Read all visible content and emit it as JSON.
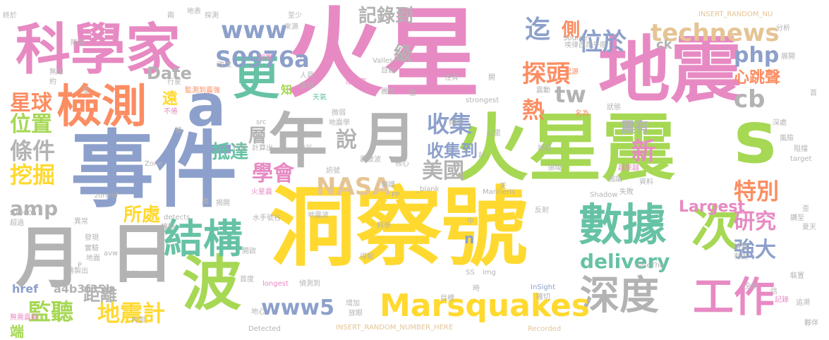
{
  "palette": {
    "pink": "#e78ac3",
    "green": "#a6d854",
    "orange": "#fc8d62",
    "teal": "#66c2a5",
    "blue": "#8da0cb",
    "yellow": "#ffd92f",
    "tan": "#e5c494",
    "gray": "#b3b3b3"
  },
  "words": [
    {
      "text": "火星",
      "color": "#e78ac3"
    },
    {
      "text": "地震",
      "color": "#e78ac3"
    },
    {
      "text": "事件",
      "color": "#8da0cb"
    },
    {
      "text": "洞察號",
      "color": "#ffd92f"
    },
    {
      "text": "火星震",
      "color": "#a6d854"
    },
    {
      "text": "科學家",
      "color": "#e78ac3"
    },
    {
      "text": "檢測",
      "color": "#fc8d62"
    },
    {
      "text": "年",
      "color": "#b3b3b3"
    },
    {
      "text": "月",
      "color": "#b3b3b3"
    },
    {
      "text": "月",
      "color": "#b3b3b3"
    },
    {
      "text": "日",
      "color": "#b3b3b3"
    },
    {
      "text": "a",
      "color": "#8da0cb"
    },
    {
      "text": "s",
      "color": "#a6d854"
    },
    {
      "text": "更",
      "color": "#66c2a5"
    },
    {
      "text": "數據",
      "color": "#66c2a5"
    },
    {
      "text": "次",
      "color": "#a6d854"
    },
    {
      "text": "波",
      "color": "#a6d854"
    },
    {
      "text": "結構",
      "color": "#66c2a5"
    },
    {
      "text": "深度",
      "color": "#b3b3b3"
    },
    {
      "text": "工作",
      "color": "#e78ac3"
    },
    {
      "text": "Marsquakes",
      "color": "#ffd92f"
    },
    {
      "text": "NASA",
      "color": "#e5c494"
    },
    {
      "text": "www",
      "color": "#8da0cb"
    },
    {
      "text": "www5",
      "color": "#8da0cb"
    },
    {
      "text": "technews",
      "color": "#e5c494"
    },
    {
      "text": "S0976a",
      "color": "#8da0cb"
    },
    {
      "text": "delivery",
      "color": "#66c2a5"
    },
    {
      "text": "amp",
      "color": "#b3b3b3"
    },
    {
      "text": "Date",
      "color": "#b3b3b3"
    },
    {
      "text": "tw",
      "color": "#b3b3b3"
    },
    {
      "text": "cb",
      "color": "#b3b3b3"
    },
    {
      "text": "php",
      "color": "#8da0cb"
    },
    {
      "text": "Largest",
      "color": "#e78ac3"
    },
    {
      "text": "記錄到",
      "color": "#b3b3b3"
    },
    {
      "text": "迄",
      "color": "#8da0cb"
    },
    {
      "text": "側",
      "color": "#fc8d62"
    },
    {
      "text": "位於",
      "color": "#8da0cb"
    },
    {
      "text": "級",
      "color": "#b3b3b3"
    },
    {
      "text": "探頭",
      "color": "#fc8d62"
    },
    {
      "text": "熱",
      "color": "#fc8d62"
    },
    {
      "text": "收集",
      "color": "#8da0cb"
    },
    {
      "text": "收集到",
      "color": "#8da0cb"
    },
    {
      "text": "美國",
      "color": "#b3b3b3"
    },
    {
      "text": "說",
      "color": "#b3b3b3"
    },
    {
      "text": "層",
      "color": "#b3b3b3"
    },
    {
      "text": "學會",
      "color": "#e78ac3"
    },
    {
      "text": "新",
      "color": "#e78ac3"
    },
    {
      "text": "特別",
      "color": "#fc8d62"
    },
    {
      "text": "研究",
      "color": "#e78ac3"
    },
    {
      "text": "強大",
      "color": "#8da0cb"
    },
    {
      "text": "心跳聲",
      "color": "#fc8d62"
    },
    {
      "text": "星球",
      "color": "#fc8d62"
    },
    {
      "text": "位置",
      "color": "#a6d854"
    },
    {
      "text": "條件",
      "color": "#b3b3b3"
    },
    {
      "text": "挖掘",
      "color": "#ffd92f"
    },
    {
      "text": "所處",
      "color": "#ffd92f"
    },
    {
      "text": "監聽",
      "color": "#a6d854"
    },
    {
      "text": "地震計",
      "color": "#ffd92f"
    },
    {
      "text": "距離",
      "color": "#b3b3b3"
    },
    {
      "text": "抵達",
      "color": "#66c2a5"
    },
    {
      "text": "遠",
      "color": "#ffd92f"
    },
    {
      "text": "href",
      "color": "#8da0cb"
    },
    {
      "text": "a4b3f35b",
      "color": "#b3b3b3"
    },
    {
      "text": "震有",
      "color": "#b3b3b3"
    },
    {
      "text": "ck",
      "color": "#b3b3b3"
    },
    {
      "text": "端",
      "color": "#a6d854"
    },
    {
      "text": "知",
      "color": "#a6d854"
    },
    {
      "text": "n",
      "color": "#8da0cb"
    },
    {
      "text": "監測到震強",
      "color": "#fc8d62"
    },
    {
      "text": "無線",
      "color": "#b3b3b3"
    },
    {
      "text": "約",
      "color": "#b3b3b3"
    },
    {
      "text": "電",
      "color": "#b3b3b3"
    },
    {
      "text": "行星",
      "color": "#b3b3b3"
    },
    {
      "text": "不倦",
      "color": "#e78ac3"
    },
    {
      "text": "極",
      "color": "#b3b3b3"
    },
    {
      "text": "Zone",
      "color": "#b3b3b3"
    },
    {
      "text": "zoneid",
      "color": "#b3b3b3"
    },
    {
      "text": "S1000a",
      "color": "#b3b3b3"
    },
    {
      "text": "超過",
      "color": "#b3b3b3"
    },
    {
      "text": "異常",
      "color": "#b3b3b3"
    },
    {
      "text": "發現",
      "color": "#b3b3b3"
    },
    {
      "text": "實驗",
      "color": "#b3b3b3"
    },
    {
      "text": "地面",
      "color": "#b3b3b3"
    },
    {
      "text": "繪製出",
      "color": "#b3b3b3"
    },
    {
      "text": "無需震疑",
      "color": "#e78ac3"
    },
    {
      "text": "P",
      "color": "#b3b3b3"
    },
    {
      "text": "avw",
      "color": "#b3b3b3"
    },
    {
      "text": "聽到",
      "color": "#b3b3b3"
    },
    {
      "text": "內部",
      "color": "#b3b3b3"
    },
    {
      "text": "終於",
      "color": "#b3b3b3"
    },
    {
      "text": "降落",
      "color": "#b3b3b3"
    },
    {
      "text": "地表",
      "color": "#b3b3b3"
    },
    {
      "text": "探測",
      "color": "#b3b3b3"
    },
    {
      "text": "兩",
      "color": "#b3b3b3"
    },
    {
      "text": "至少",
      "color": "#b3b3b3"
    },
    {
      "text": "來源",
      "color": "#b3b3b3"
    },
    {
      "text": "部署",
      "color": "#e78ac3"
    },
    {
      "text": "改改",
      "color": "#b3b3b3"
    },
    {
      "text": "Valles",
      "color": "#b3b3b3"
    },
    {
      "text": "INSERT_RANDOM_NU",
      "color": "#e5c494"
    },
    {
      "text": "Source",
      "color": "#b3b3b3"
    },
    {
      "text": "埃律西昂平原",
      "color": "#b3b3b3"
    },
    {
      "text": "分析",
      "color": "#b3b3b3"
    },
    {
      "text": "展開",
      "color": "#b3b3b3"
    },
    {
      "text": "目錄",
      "color": "#b3b3b3"
    },
    {
      "text": "人員",
      "color": "#b3b3b3"
    },
    {
      "text": "畫出",
      "color": "#b3b3b3"
    },
    {
      "text": "陰影區",
      "color": "#e78ac3"
    },
    {
      "text": "團隊",
      "color": "#b3b3b3"
    },
    {
      "text": "天氣",
      "color": "#66c2a5"
    },
    {
      "text": "性質",
      "color": "#b3b3b3"
    },
    {
      "text": "開",
      "color": "#b3b3b3"
    },
    {
      "text": "起源",
      "color": "#fc8d62"
    },
    {
      "text": "震動",
      "color": "#b3b3b3"
    },
    {
      "text": "整",
      "color": "#b3b3b3"
    },
    {
      "text": "strongest",
      "color": "#b3b3b3"
    },
    {
      "text": "名為",
      "color": "#fc8d62"
    },
    {
      "text": "狀態",
      "color": "#b3b3b3"
    },
    {
      "text": "首",
      "color": "#b3b3b3"
    },
    {
      "text": "微弱",
      "color": "#b3b3b3"
    },
    {
      "text": "組件",
      "color": "#b3b3b3"
    },
    {
      "text": "src",
      "color": "#b3b3b3"
    },
    {
      "text": "地震學",
      "color": "#b3b3b3"
    },
    {
      "text": "打消",
      "color": "#b3b3b3"
    },
    {
      "text": "計算出",
      "color": "#b3b3b3"
    },
    {
      "text": "峽谷",
      "color": "#b3b3b3"
    },
    {
      "text": "震波波",
      "color": "#b3b3b3"
    },
    {
      "text": "核心",
      "color": "#b3b3b3"
    },
    {
      "text": "公里",
      "color": "#b3b3b3"
    },
    {
      "text": "深處",
      "color": "#b3b3b3"
    },
    {
      "text": "計",
      "color": "#b3b3b3"
    },
    {
      "text": "地殼",
      "color": "#b3b3b3"
    },
    {
      "text": "風險",
      "color": "#b3b3b3"
    },
    {
      "text": "阻擋",
      "color": "#b3b3b3"
    },
    {
      "text": "target",
      "color": "#b3b3b3"
    },
    {
      "text": "越來越",
      "color": "#e78ac3"
    },
    {
      "text": "領域",
      "color": "#b3b3b3"
    },
    {
      "text": "國論",
      "color": "#b3b3b3"
    },
    {
      "text": "訊號",
      "color": "#b3b3b3"
    },
    {
      "text": "頻譜",
      "color": "#b3b3b3"
    },
    {
      "text": "_blank",
      "color": "#b3b3b3"
    },
    {
      "text": "天",
      "color": "#b3b3b3"
    },
    {
      "text": "資料",
      "color": "#b3b3b3"
    },
    {
      "text": "失敗",
      "color": "#b3b3b3"
    },
    {
      "text": "火星震",
      "color": "#e78ac3"
    },
    {
      "text": "PP",
      "color": "#b3b3b3"
    },
    {
      "text": "Marineris",
      "color": "#b3b3b3"
    },
    {
      "text": "Shadow",
      "color": "#b3b3b3"
    },
    {
      "text": "腐",
      "color": "#b3b3b3"
    },
    {
      "text": "揭開",
      "color": "#b3b3b3"
    },
    {
      "text": "detects",
      "color": "#b3b3b3"
    },
    {
      "text": "反射",
      "color": "#b3b3b3"
    },
    {
      "text": "撞擊",
      "color": "#b3b3b3"
    },
    {
      "text": "水手號谷",
      "color": "#b3b3b3"
    },
    {
      "text": "地震波",
      "color": "#b3b3b3"
    },
    {
      "text": "中",
      "color": "#b3b3b3"
    },
    {
      "text": "歪",
      "color": "#b3b3b3"
    },
    {
      "text": "鑽至",
      "color": "#b3b3b3"
    },
    {
      "text": "科學",
      "color": "#b3b3b3"
    },
    {
      "text": "夏天",
      "color": "#b3b3b3"
    },
    {
      "text": "請方",
      "color": "#b3b3b3"
    },
    {
      "text": "有史",
      "color": "#b3b3b3"
    },
    {
      "text": "開啟",
      "color": "#b3b3b3"
    },
    {
      "text": "得知",
      "color": "#b3b3b3"
    },
    {
      "text": "SS",
      "color": "#b3b3b3"
    },
    {
      "text": "img",
      "color": "#b3b3b3"
    },
    {
      "text": "dateThe",
      "color": "#b3b3b3"
    },
    {
      "text": "首度",
      "color": "#b3b3b3"
    },
    {
      "text": "longest",
      "color": "#e78ac3"
    },
    {
      "text": "偵測到",
      "color": "#b3b3b3"
    },
    {
      "text": "時",
      "color": "#b3b3b3"
    },
    {
      "text": "InSight",
      "color": "#8da0cb"
    },
    {
      "text": "確切",
      "color": "#b3b3b3"
    },
    {
      "text": "全新",
      "color": "#b3b3b3"
    },
    {
      "text": "裝置",
      "color": "#b3b3b3"
    },
    {
      "text": "信",
      "color": "#b3b3b3"
    },
    {
      "text": "記錄",
      "color": "#e78ac3"
    },
    {
      "text": "追溯",
      "color": "#b3b3b3"
    },
    {
      "text": "增加",
      "color": "#b3b3b3"
    },
    {
      "text": "目標",
      "color": "#b3b3b3"
    },
    {
      "text": "地心",
      "color": "#b3b3b3"
    },
    {
      "text": "放眼",
      "color": "#b3b3b3"
    },
    {
      "text": "Detected",
      "color": "#b3b3b3"
    },
    {
      "text": "INSERT_RANDOM_NUMBER_HERE",
      "color": "#e5c494"
    },
    {
      "text": "Recorded",
      "color": "#e5c494"
    },
    {
      "text": "夥伴",
      "color": "#b3b3b3"
    }
  ]
}
